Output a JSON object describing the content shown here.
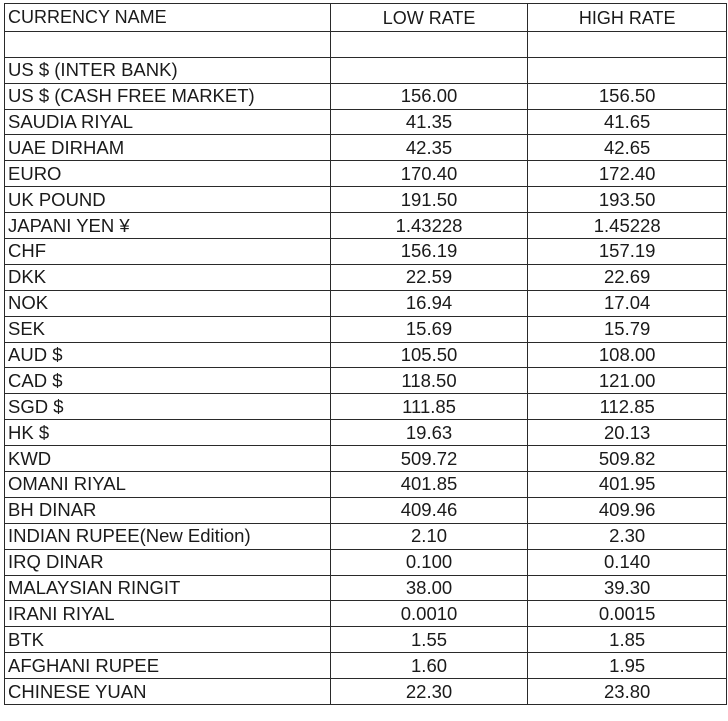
{
  "table": {
    "headers": [
      "CURRENCY NAME",
      "LOW RATE",
      "HIGH RATE"
    ],
    "rows": [
      [
        "",
        "",
        ""
      ],
      [
        "US $ (INTER BANK)",
        "",
        ""
      ],
      [
        "US $ (CASH FREE MARKET)",
        "156.00",
        "156.50"
      ],
      [
        "SAUDIA RIYAL",
        "41.35",
        "41.65"
      ],
      [
        "UAE DIRHAM",
        "42.35",
        "42.65"
      ],
      [
        "EURO",
        "170.40",
        "172.40"
      ],
      [
        "UK POUND",
        "191.50",
        "193.50"
      ],
      [
        "JAPANI YEN ¥",
        "1.43228",
        "1.45228"
      ],
      [
        "CHF",
        "156.19",
        "157.19"
      ],
      [
        "DKK",
        "22.59",
        "22.69"
      ],
      [
        "NOK",
        "16.94",
        "17.04"
      ],
      [
        "SEK",
        "15.69",
        "15.79"
      ],
      [
        "AUD $",
        "105.50",
        "108.00"
      ],
      [
        "CAD $",
        "118.50",
        "121.00"
      ],
      [
        "SGD $",
        "111.85",
        "112.85"
      ],
      [
        "HK $",
        "19.63",
        "20.13"
      ],
      [
        "KWD",
        "509.72",
        "509.82"
      ],
      [
        "OMANI RIYAL",
        "401.85",
        "401.95"
      ],
      [
        "BH DINAR",
        "409.46",
        "409.96"
      ],
      [
        "INDIAN RUPEE(New Edition)",
        "2.10",
        "2.30"
      ],
      [
        "IRQ DINAR",
        "0.100",
        "0.140"
      ],
      [
        "MALAYSIAN RINGIT",
        "38.00",
        "39.30"
      ],
      [
        "IRANI RIYAL",
        "0.0010",
        "0.0015"
      ],
      [
        "BTK",
        "1.55",
        "1.85"
      ],
      [
        "AFGHANI RUPEE",
        "1.60",
        "1.95"
      ],
      [
        "CHINESE YUAN",
        "22.30",
        "23.80"
      ]
    ]
  }
}
